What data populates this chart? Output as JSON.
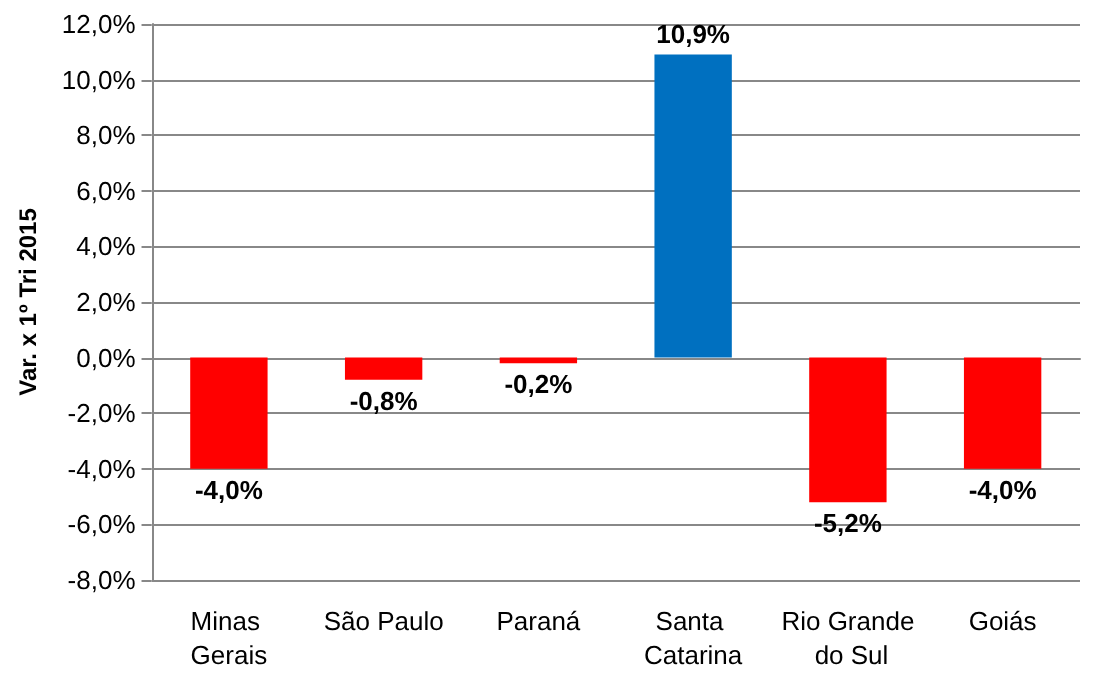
{
  "chart_data": {
    "type": "bar",
    "ylabel": "Var. x 1º Tri 2015",
    "categories": [
      "Minas Gerais",
      "São Paulo",
      "Paraná",
      "Santa Catarina",
      "Rio Grande do Sul",
      "Goiás"
    ],
    "values": [
      -4.0,
      -0.8,
      -0.2,
      10.9,
      -5.2,
      -4.0
    ],
    "colors": [
      "#ff0000",
      "#ff0000",
      "#ff0000",
      "#0070c0",
      "#ff0000",
      "#ff0000"
    ],
    "value_labels": [
      "-4,0%",
      "-0,8%",
      "-0,2%",
      "10,9%",
      "-5,2%",
      "-4,0%"
    ],
    "ylim": [
      -8,
      12
    ],
    "yticks": [
      {
        "value": -8,
        "label": "-8,0%"
      },
      {
        "value": -6,
        "label": "-6,0%"
      },
      {
        "value": -4,
        "label": "-4,0%"
      },
      {
        "value": -2,
        "label": "-2,0%"
      },
      {
        "value": 0,
        "label": "0,0%"
      },
      {
        "value": 2,
        "label": "2,0%"
      },
      {
        "value": 4,
        "label": "4,0%"
      },
      {
        "value": 6,
        "label": "6,0%"
      },
      {
        "value": 8,
        "label": "8,0%"
      },
      {
        "value": 10,
        "label": "10,0%"
      },
      {
        "value": 12,
        "label": "12,0%"
      }
    ],
    "grid": "y"
  }
}
